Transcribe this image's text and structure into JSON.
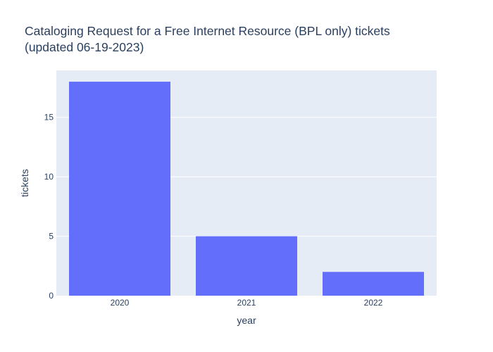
{
  "chart_data": {
    "type": "bar",
    "title_lines": [
      "Cataloging Request for a Free Internet Resource (BPL only) tickets",
      "(updated 06-19-2023)"
    ],
    "xlabel": "year",
    "ylabel": "tickets",
    "categories": [
      "2020",
      "2021",
      "2022"
    ],
    "values": [
      18,
      5,
      2
    ],
    "ylim": [
      0,
      18.95
    ],
    "yticks": [
      0,
      5,
      10,
      15
    ],
    "grid": true,
    "legend": "none",
    "colors": {
      "bar": "#636efa",
      "plot_background": "#e5ecf6",
      "gridline": "#ffffff",
      "text": "#2a3f5f"
    }
  }
}
